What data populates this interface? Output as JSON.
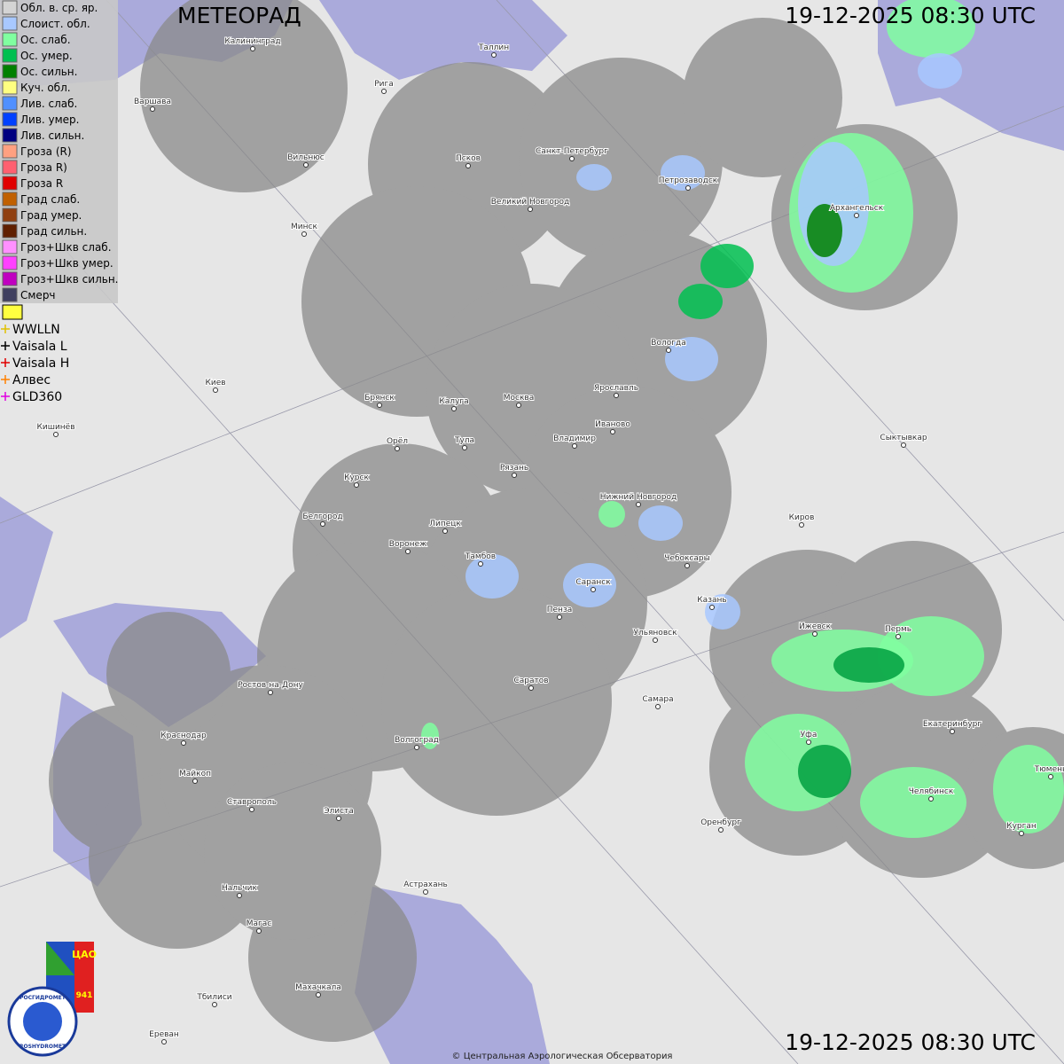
{
  "header": {
    "title": "МЕТЕОРАД",
    "timestamp_top": "19-12-2025  08:30 UTC",
    "timestamp_bottom": "19-12-2025  08:30 UTC"
  },
  "legend": [
    {
      "label": "Обл. в. ср. яр.",
      "color": "#d4d4d4"
    },
    {
      "label": "Слоист. обл.",
      "color": "#a8c8ff"
    },
    {
      "label": "Ос. слаб.",
      "color": "#80ffa0"
    },
    {
      "label": "Ос. умер.",
      "color": "#00c050"
    },
    {
      "label": "Ос. сильн.",
      "color": "#008000"
    },
    {
      "label": "Куч. обл.",
      "color": "#ffff80"
    },
    {
      "label": "Лив. слаб.",
      "color": "#5090ff"
    },
    {
      "label": "Лив. умер.",
      "color": "#0040ff"
    },
    {
      "label": "Лив. сильн.",
      "color": "#000080"
    },
    {
      "label": "Гроза (R)",
      "color": "#ffa080"
    },
    {
      "label": "Гроза R)",
      "color": "#ff6070"
    },
    {
      "label": "Гроза R",
      "color": "#e00000"
    },
    {
      "label": "Град слаб.",
      "color": "#c06000"
    },
    {
      "label": "Град умер.",
      "color": "#904010"
    },
    {
      "label": "Град сильн.",
      "color": "#602000"
    },
    {
      "label": "Гроз+Шкв слаб.",
      "color": "#ff90ff"
    },
    {
      "label": "Гроз+Шкв умер.",
      "color": "#ff40ff"
    },
    {
      "label": "Гроз+Шкв сильн.",
      "color": "#c000c0"
    },
    {
      "label": "Смерч",
      "color": "#404060"
    }
  ],
  "lightning_legend": [
    {
      "label": "WWLLN",
      "color": "#e0c000"
    },
    {
      "label": "Vaisala L",
      "color": "#000000"
    },
    {
      "label": "Vaisala H",
      "color": "#e00000"
    },
    {
      "label": "Алвес",
      "color": "#ff8000"
    },
    {
      "label": "GLD360",
      "color": "#e000e0"
    }
  ],
  "cities": [
    "Калининград",
    "Таллин",
    "Рига",
    "Варшава",
    "Вильнюс",
    "Псков",
    "Санкт-Петербург",
    "Петрозаводск",
    "Архангельск",
    "Великий Новгород",
    "Минск",
    "Вологда",
    "Киев",
    "Брянск",
    "Калуга",
    "Москва",
    "Ярославль",
    "Иваново",
    "Кишинёв",
    "Орёл",
    "Тула",
    "Владимир",
    "Сыктывкар",
    "Рязань",
    "Курск",
    "Нижний Новгород",
    "Белгород",
    "Липецк",
    "Киров",
    "Воронеж",
    "Тамбов",
    "Чебоксары",
    "Саранск",
    "Казань",
    "Пенза",
    "Ижевск",
    "Пермь",
    "Ульяновск",
    "Ростов-на-Дону",
    "Саратов",
    "Самара",
    "Краснодар",
    "Волгоград",
    "Уфа",
    "Екатеринбург",
    "Тюмень",
    "Майкоп",
    "Челябинск",
    "Ставрополь",
    "Элиста",
    "Оренбург",
    "Курган",
    "Нальчик",
    "Астрахань",
    "Магас",
    "Тбилиси",
    "Махачкала",
    "Ереван"
  ],
  "logo": {
    "org_ru": "РОСГИДРОМЕТ",
    "org_en": "ROSHYDROMET",
    "cao": "ЦАО",
    "number": "941"
  },
  "copyright": "© Центральная Аэрологическая Обсерватория"
}
